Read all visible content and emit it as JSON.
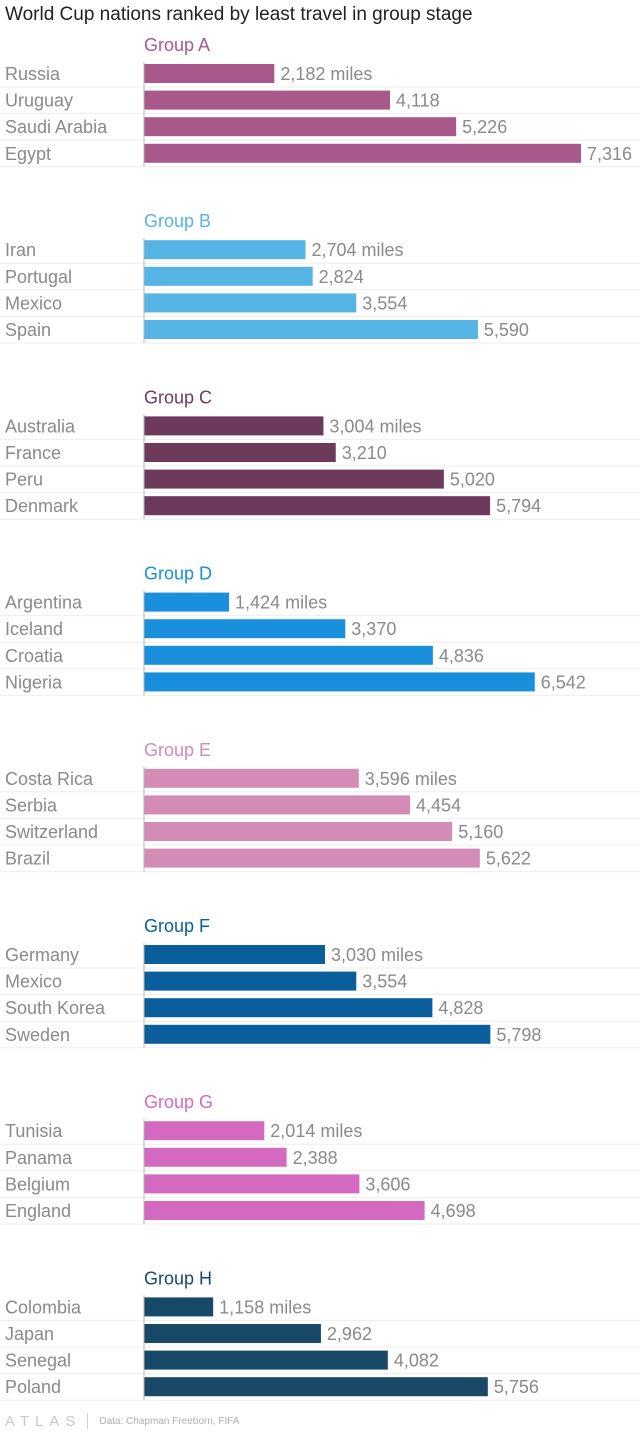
{
  "title": "World Cup nations ranked by least travel in group stage",
  "footer": {
    "brand": "ATLAS",
    "source": "Data: Chapman Freeborn, FIFA"
  },
  "chart_data": {
    "type": "bar",
    "orientation": "horizontal",
    "title": "World Cup nations ranked by least travel in group stage",
    "unit": "miles",
    "xlim": [
      0,
      7316
    ],
    "grid": false,
    "groups": [
      {
        "name": "Group A",
        "color": "#a8588a",
        "categories": [
          "Russia",
          "Uruguay",
          "Saudi Arabia",
          "Egypt"
        ],
        "values": [
          2182,
          4118,
          5226,
          7316
        ],
        "labels": [
          "2,182 miles",
          "4,118",
          "5,226",
          "7,316"
        ]
      },
      {
        "name": "Group B",
        "color": "#55b4e4",
        "categories": [
          "Iran",
          "Portugal",
          "Mexico",
          "Spain"
        ],
        "values": [
          2704,
          2824,
          3554,
          5590
        ],
        "labels": [
          "2,704 miles",
          "2,824",
          "3,554",
          "5,590"
        ]
      },
      {
        "name": "Group C",
        "color": "#6e3a5c",
        "categories": [
          "Australia",
          "France",
          "Peru",
          "Denmark"
        ],
        "values": [
          3004,
          3210,
          5020,
          5794
        ],
        "labels": [
          "3,004 miles",
          "3,210",
          "5,020",
          "5,794"
        ]
      },
      {
        "name": "Group D",
        "color": "#1a8fdc",
        "categories": [
          "Argentina",
          "Iceland",
          "Croatia",
          "Nigeria"
        ],
        "values": [
          1424,
          3370,
          4836,
          6542
        ],
        "labels": [
          "1,424 miles",
          "3,370",
          "4,836",
          "6,542"
        ]
      },
      {
        "name": "Group E",
        "color": "#d38cb6",
        "categories": [
          "Costa Rica",
          "Serbia",
          "Switzerland",
          "Brazil"
        ],
        "values": [
          3596,
          4454,
          5160,
          5622
        ],
        "labels": [
          "3,596 miles",
          "4,454",
          "5,160",
          "5,622"
        ]
      },
      {
        "name": "Group F",
        "color": "#0a5e9c",
        "categories": [
          "Germany",
          "Mexico",
          "South Korea",
          "Sweden"
        ],
        "values": [
          3030,
          3554,
          4828,
          5798
        ],
        "labels": [
          "3,030 miles",
          "3,554",
          "4,828",
          "5,798"
        ]
      },
      {
        "name": "Group G",
        "color": "#d36ac0",
        "categories": [
          "Tunisia",
          "Panama",
          "Belgium",
          "England"
        ],
        "values": [
          2014,
          2388,
          3606,
          4698
        ],
        "labels": [
          "2,014 miles",
          "2,388",
          "3,606",
          "4,698"
        ]
      },
      {
        "name": "Group H",
        "color": "#184966",
        "categories": [
          "Colombia",
          "Japan",
          "Senegal",
          "Poland"
        ],
        "values": [
          1158,
          2962,
          4082,
          5756
        ],
        "labels": [
          "1,158 miles",
          "2,962",
          "4,082",
          "5,756"
        ]
      }
    ]
  }
}
